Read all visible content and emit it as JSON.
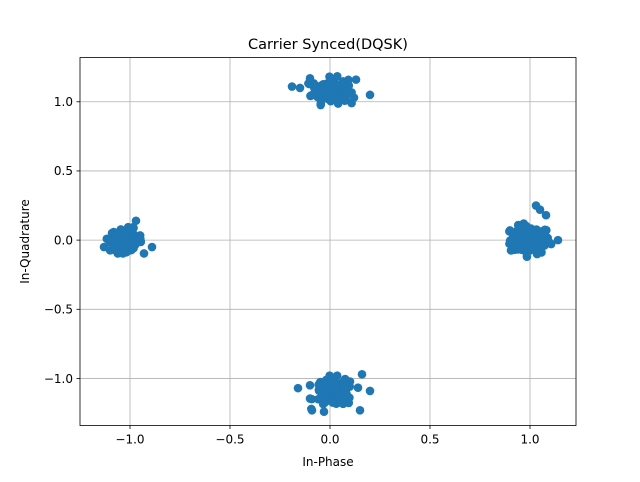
{
  "chart_data": {
    "type": "scatter",
    "title": "Carrier Synced(DQSK)",
    "xlabel": "In-Phase",
    "ylabel": "In-Quadrature",
    "xlim": [
      -1.25,
      1.23
    ],
    "ylim": [
      -1.34,
      1.32
    ],
    "xticks": [
      -1.0,
      -0.5,
      0.0,
      0.5,
      1.0
    ],
    "xtick_labels": [
      "−1.0",
      "−0.5",
      "0.0",
      "0.5",
      "1.0"
    ],
    "yticks": [
      -1.0,
      -0.5,
      0.0,
      0.5,
      1.0
    ],
    "ytick_labels": [
      "−1.0",
      "−0.5",
      "0.0",
      "0.5",
      "1.0"
    ],
    "grid": true,
    "marker_color": "#1f77b4",
    "clusters": [
      {
        "center": [
          1.0,
          0.0
        ],
        "spread": 0.05,
        "count": 120
      },
      {
        "center": [
          0.0,
          1.08
        ],
        "spread": 0.045,
        "count": 120
      },
      {
        "center": [
          -1.02,
          0.0
        ],
        "spread": 0.04,
        "count": 120
      },
      {
        "center": [
          0.02,
          -1.1
        ],
        "spread": 0.05,
        "count": 120
      }
    ],
    "outliers": [
      [
        -0.19,
        1.11
      ],
      [
        0.2,
        1.05
      ],
      [
        1.03,
        0.25
      ],
      [
        1.05,
        0.22
      ],
      [
        1.08,
        0.18
      ],
      [
        0.15,
        -1.23
      ],
      [
        -0.09,
        -1.23
      ],
      [
        -0.03,
        -1.24
      ],
      [
        0.2,
        -1.09
      ],
      [
        -0.16,
        -1.07
      ],
      [
        -1.13,
        -0.05
      ],
      [
        -0.89,
        -0.05
      ],
      [
        -0.97,
        0.14
      ],
      [
        0.9,
        0.07
      ],
      [
        1.14,
        0.0
      ],
      [
        0.13,
        1.16
      ],
      [
        -0.1,
        1.17
      ],
      [
        0.16,
        -0.97
      ],
      [
        -0.15,
        1.1
      ],
      [
        0.12,
        1.03
      ]
    ]
  }
}
